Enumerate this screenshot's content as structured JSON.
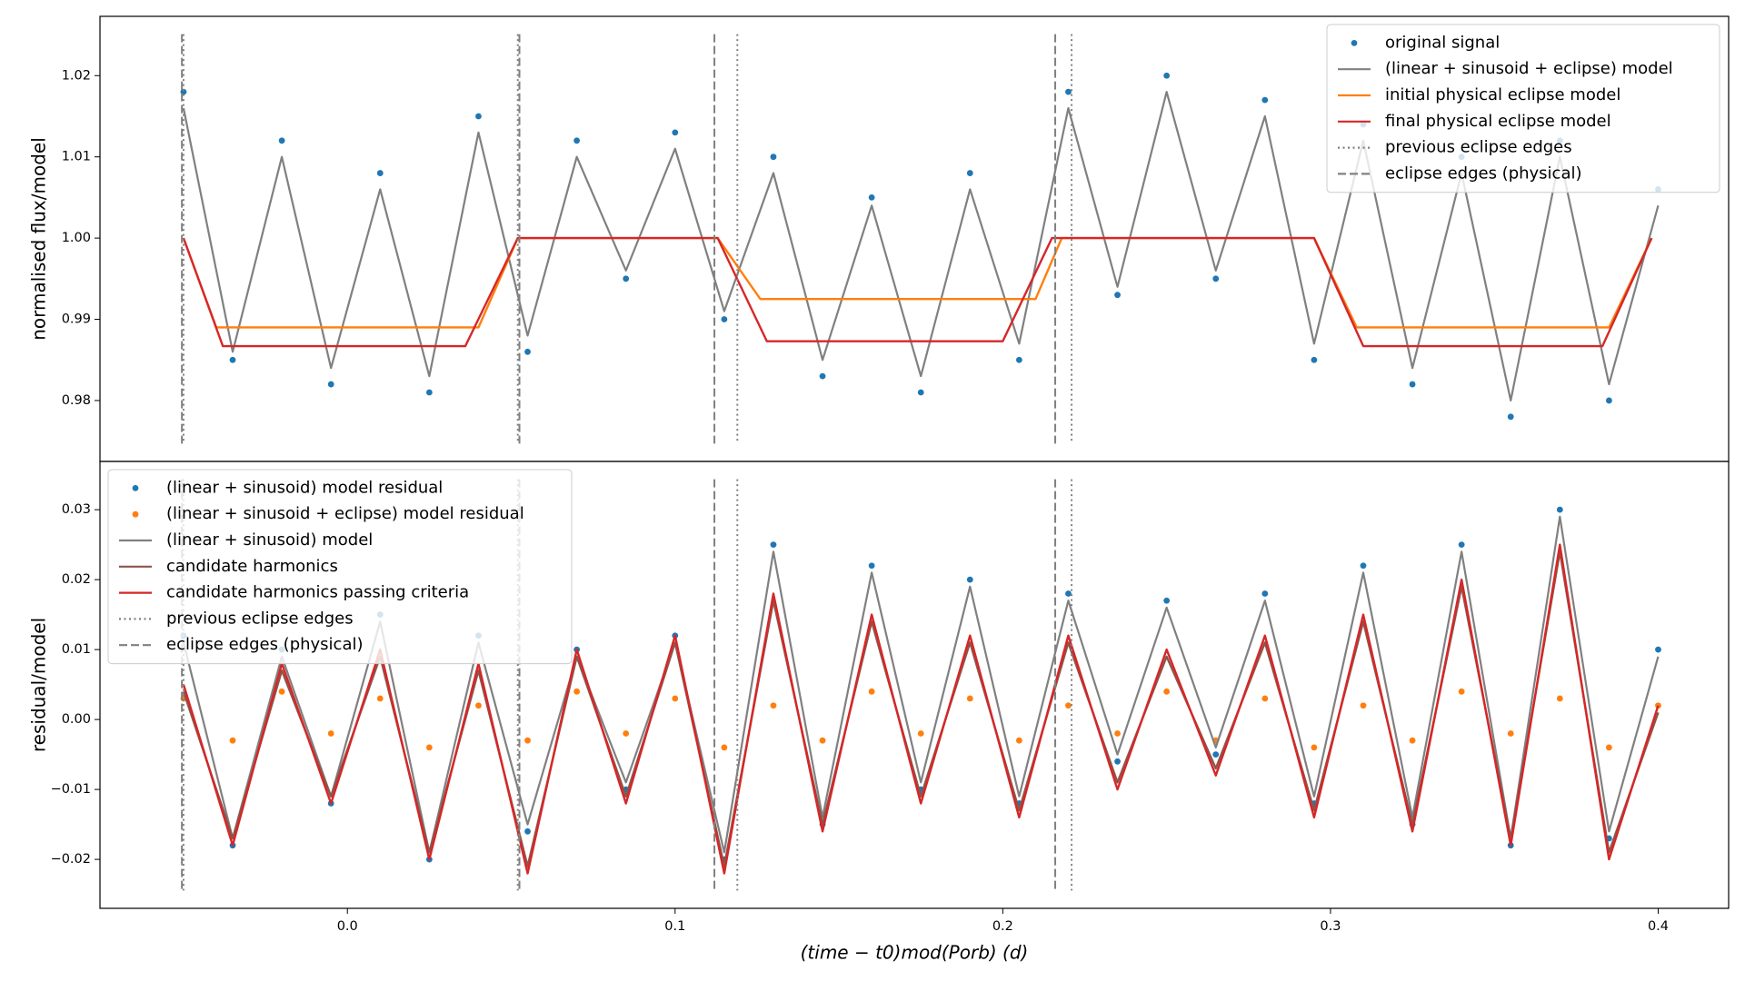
{
  "chart_data": [
    {
      "type": "scatter",
      "ylabel": "normalised flux/model",
      "legend": "upper right",
      "xlim": [
        -0.0755,
        0.4215
      ],
      "ylim": [
        0.9725,
        1.0273
      ],
      "yticks": [
        0.98,
        0.99,
        {
          "value": 1,
          "label": "1.00"
        },
        1.01,
        1.02
      ],
      "x": [
        -0.05,
        -0.035,
        -0.02,
        -0.005,
        0.01,
        0.025,
        0.04,
        0.055,
        0.07,
        0.085,
        0.1,
        0.115,
        0.13,
        0.145,
        0.16,
        0.175,
        0.19,
        0.205,
        0.22,
        0.235,
        0.25,
        0.265,
        0.28,
        0.295,
        0.31,
        0.325,
        0.34,
        0.355,
        0.37,
        0.385,
        0.4
      ],
      "series": [
        {
          "name": "original signal",
          "kind": "scatter",
          "color": "#1f77b4",
          "values": [
            1.018,
            0.985,
            1.012,
            0.982,
            1.008,
            0.981,
            1.015,
            0.986,
            1.012,
            0.995,
            1.013,
            0.99,
            1.01,
            0.983,
            1.005,
            0.981,
            1.008,
            0.985,
            1.018,
            0.993,
            1.02,
            0.995,
            1.017,
            0.985,
            1.014,
            0.982,
            1.01,
            0.978,
            1.012,
            0.98,
            1.006
          ]
        },
        {
          "name": "(linear + sinusoid + eclipse) model",
          "kind": "line",
          "color": "#808080",
          "values": [
            1.016,
            0.986,
            1.01,
            0.984,
            1.006,
            0.983,
            1.013,
            0.988,
            1.01,
            0.996,
            1.011,
            0.991,
            1.008,
            0.985,
            1.004,
            0.983,
            1.006,
            0.987,
            1.016,
            0.994,
            1.018,
            0.996,
            1.015,
            0.987,
            1.012,
            0.984,
            1.008,
            0.98,
            1.01,
            0.982,
            1.004
          ]
        },
        {
          "name": "initial physical eclipse model",
          "kind": "line",
          "color": "#ff7f0e",
          "x": [
            -0.05,
            -0.04,
            0.04,
            0.052,
            0.113,
            0.126,
            0.21,
            0.218,
            0.295,
            0.308,
            0.385,
            0.398
          ],
          "values": [
            1,
            0.989,
            0.989,
            1,
            1,
            0.9925,
            0.9925,
            1,
            1,
            0.989,
            0.989,
            1
          ]
        },
        {
          "name": "final physical eclipse model",
          "kind": "line",
          "color": "#d62728",
          "x": [
            -0.05,
            -0.038,
            0.036,
            0.052,
            0.113,
            0.128,
            0.2,
            0.215,
            0.295,
            0.31,
            0.383,
            0.398
          ],
          "values": [
            1,
            0.9867,
            0.9867,
            1,
            1,
            0.9873,
            0.9873,
            1,
            1,
            0.9867,
            0.9867,
            1
          ]
        },
        {
          "name": "previous eclipse edges",
          "kind": "vline",
          "style": "dotted",
          "color": "#808080",
          "x": [
            -0.05,
            0.052,
            0.119,
            0.221
          ]
        },
        {
          "name": "eclipse edges (physical)",
          "kind": "vline",
          "style": "dashed",
          "color": "#808080",
          "x": [
            -0.0505,
            0.0525,
            0.112,
            0.216
          ]
        }
      ]
    },
    {
      "type": "scatter",
      "ylabel": "residual/model",
      "legend": "upper left",
      "xlabel": "(time − t0)mod(Porb) (d)",
      "xlim": [
        -0.0755,
        0.4215
      ],
      "ylim": [
        -0.027,
        0.0369
      ],
      "xticks": [
        {
          "value": 0,
          "label": "0.0"
        },
        0.1,
        0.2,
        0.3,
        0.4
      ],
      "yticks": [
        {
          "value": -0.02,
          "label": "−0.02"
        },
        {
          "value": -0.01,
          "label": "−0.01"
        },
        {
          "value": 0,
          "label": "0.00"
        },
        0.01,
        0.02,
        0.03
      ],
      "x": [
        -0.05,
        -0.035,
        -0.02,
        -0.005,
        0.01,
        0.025,
        0.04,
        0.055,
        0.07,
        0.085,
        0.1,
        0.115,
        0.13,
        0.145,
        0.16,
        0.175,
        0.19,
        0.205,
        0.22,
        0.235,
        0.25,
        0.265,
        0.28,
        0.295,
        0.31,
        0.325,
        0.34,
        0.355,
        0.37,
        0.385,
        0.4
      ],
      "series": [
        {
          "name": "(linear + sinusoid) model residual",
          "kind": "scatter",
          "color": "#1f77b4",
          "values": [
            0.012,
            -0.018,
            0.01,
            -0.012,
            0.015,
            -0.02,
            0.012,
            -0.016,
            0.01,
            -0.01,
            0.012,
            -0.02,
            0.025,
            -0.015,
            0.022,
            -0.01,
            0.02,
            -0.012,
            0.018,
            -0.006,
            0.017,
            -0.005,
            0.018,
            -0.012,
            0.022,
            -0.015,
            0.025,
            -0.018,
            0.03,
            -0.017,
            0.01
          ]
        },
        {
          "name": "(linear + sinusoid + eclipse) model residual",
          "kind": "scatter",
          "color": "#ff7f0e",
          "values": [
            0.003,
            -0.003,
            0.004,
            -0.002,
            0.003,
            -0.004,
            0.002,
            -0.003,
            0.004,
            -0.002,
            0.003,
            -0.004,
            0.002,
            -0.003,
            0.004,
            -0.002,
            0.003,
            -0.003,
            0.002,
            -0.002,
            0.004,
            -0.003,
            0.003,
            -0.004,
            0.002,
            -0.003,
            0.004,
            -0.002,
            0.003,
            -0.004,
            0.002
          ]
        },
        {
          "name": "(linear + sinusoid) model",
          "kind": "line",
          "color": "#808080",
          "values": [
            0.011,
            -0.017,
            0.009,
            -0.011,
            0.014,
            -0.019,
            0.011,
            -0.015,
            0.009,
            -0.009,
            0.011,
            -0.019,
            0.024,
            -0.014,
            0.021,
            -0.009,
            0.019,
            -0.011,
            0.017,
            -0.005,
            0.016,
            -0.004,
            0.017,
            -0.011,
            0.021,
            -0.014,
            0.024,
            -0.017,
            0.029,
            -0.016,
            0.009
          ]
        },
        {
          "name": "candidate harmonics",
          "kind": "line",
          "color": "#8c564b",
          "values": [
            0.004,
            -0.017,
            0.007,
            -0.011,
            0.009,
            -0.019,
            0.007,
            -0.021,
            0.009,
            -0.011,
            0.011,
            -0.021,
            0.017,
            -0.015,
            0.014,
            -0.011,
            0.011,
            -0.013,
            0.011,
            -0.009,
            0.009,
            -0.007,
            0.011,
            -0.013,
            0.014,
            -0.015,
            0.019,
            -0.017,
            0.024,
            -0.019,
            0.001
          ]
        },
        {
          "name": "candidate harmonics passing criteria",
          "kind": "line",
          "color": "#d62728",
          "values": [
            0.005,
            -0.018,
            0.008,
            -0.012,
            0.01,
            -0.02,
            0.008,
            -0.022,
            0.01,
            -0.012,
            0.012,
            -0.022,
            0.018,
            -0.016,
            0.015,
            -0.012,
            0.012,
            -0.014,
            0.012,
            -0.01,
            0.01,
            -0.008,
            0.012,
            -0.014,
            0.015,
            -0.016,
            0.02,
            -0.018,
            0.025,
            -0.02,
            0.002
          ]
        },
        {
          "name": "previous eclipse edges",
          "kind": "vline",
          "style": "dotted",
          "color": "#808080",
          "x": [
            -0.05,
            0.052,
            0.119,
            0.221
          ]
        },
        {
          "name": "eclipse edges (physical)",
          "kind": "vline",
          "style": "dashed",
          "color": "#808080",
          "x": [
            -0.0505,
            0.0525,
            0.112,
            0.216
          ]
        }
      ]
    }
  ]
}
